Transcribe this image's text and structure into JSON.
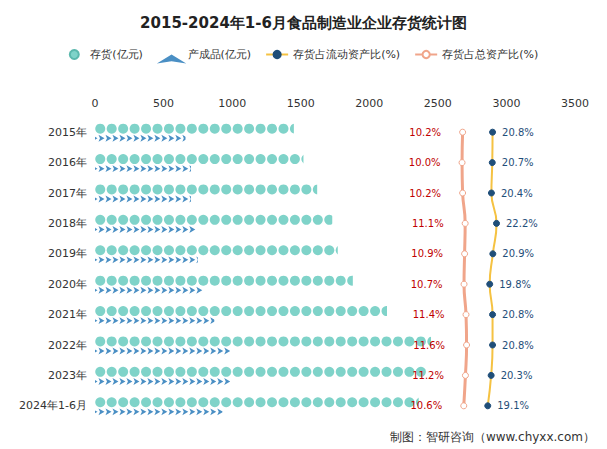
{
  "chart_data": {
    "type": "bar",
    "orientation": "horizontal",
    "title": "2015-2024年1-6月食品制造业企业存货统计图",
    "source": "制图：智研咨询（www.chyxx.com）",
    "categories": [
      "2015年",
      "2016年",
      "2017年",
      "2018年",
      "2019年",
      "2020年",
      "2021年",
      "2022年",
      "2023年",
      "2024年1-6月"
    ],
    "xlim": [
      0,
      3500
    ],
    "xticks": [
      0,
      500,
      1000,
      1500,
      2000,
      2500,
      3000,
      3500
    ],
    "y2lim": [
      -120,
      50
    ],
    "grid": false,
    "legend": "top",
    "series": [
      {
        "name": "存货(亿元)",
        "type": "bar",
        "color": "#7fd3c9",
        "marker": "circle",
        "values": [
          1450,
          1520,
          1620,
          1730,
          1770,
          1880,
          2130,
          2450,
          2420,
          2360
        ]
      },
      {
        "name": "产成品(亿元)",
        "type": "bar",
        "color": "#4a8fc4",
        "marker": "arrow",
        "values": [
          660,
          700,
          700,
          740,
          750,
          800,
          870,
          1000,
          1000,
          930
        ]
      },
      {
        "name": "存货占流动资产比(%)",
        "type": "line",
        "axis": "y2",
        "color": "#f5c242",
        "marker": "circle",
        "data_labels": true,
        "values": [
          20.8,
          20.7,
          20.4,
          22.2,
          20.9,
          19.8,
          20.8,
          20.8,
          20.3,
          19.1
        ],
        "value_labels": [
          "20.8%",
          "20.7%",
          "20.4%",
          "22.2%",
          "20.9%",
          "19.8%",
          "20.8%",
          "20.8%",
          "20.3%",
          "19.1%"
        ]
      },
      {
        "name": "存货占总资产比(%)",
        "type": "line",
        "axis": "y2",
        "color": "#f0a58a",
        "marker": "circle",
        "data_labels": true,
        "values": [
          10.2,
          10.0,
          10.2,
          11.1,
          10.9,
          10.7,
          11.4,
          11.6,
          11.2,
          10.6
        ],
        "value_labels": [
          "10.2%",
          "10.0%",
          "10.2%",
          "11.1%",
          "10.9%",
          "10.7%",
          "11.4%",
          "11.6%",
          "11.2%",
          "10.6%"
        ]
      }
    ]
  }
}
